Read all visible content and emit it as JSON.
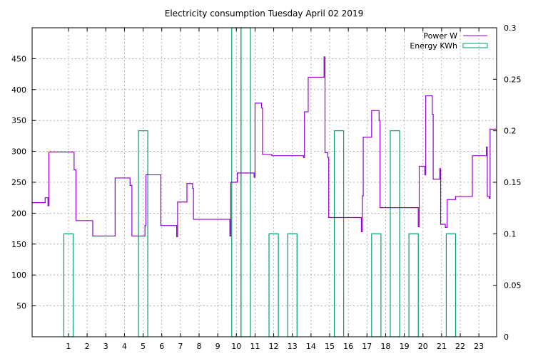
{
  "chart_data": {
    "type": "line",
    "title": "Electricity consumption Tuesday April 02 2019",
    "xlabel": "",
    "ylabel": "",
    "y2label": "",
    "xlim": [
      -0.95,
      23.95
    ],
    "ylim": [
      0,
      500
    ],
    "y2lim": [
      0,
      0.3
    ],
    "grid": true,
    "legend_position": "top-right",
    "x_ticks": [
      1,
      2,
      3,
      4,
      5,
      6,
      7,
      8,
      9,
      10,
      11,
      12,
      13,
      14,
      15,
      16,
      17,
      18,
      19,
      20,
      21,
      22,
      23
    ],
    "y_ticks": [
      50,
      100,
      150,
      200,
      250,
      300,
      350,
      400,
      450
    ],
    "y2_ticks": [
      0,
      0.05,
      0.1,
      0.15,
      0.2,
      0.25,
      0.3
    ],
    "y2_tick_labels": [
      "0",
      "0.05",
      "0.1",
      "0.15",
      "0.2",
      "0.25",
      "0.3"
    ],
    "series": [
      {
        "name": "Power W",
        "color": "#9400d3",
        "axis": "y",
        "style": "steps",
        "points": [
          [
            -0.95,
            217
          ],
          [
            -0.25,
            217
          ],
          [
            -0.25,
            225
          ],
          [
            -0.1,
            225
          ],
          [
            -0.1,
            212
          ],
          [
            -0.05,
            212
          ],
          [
            -0.05,
            299
          ],
          [
            1.3,
            299
          ],
          [
            1.3,
            270
          ],
          [
            1.4,
            270
          ],
          [
            1.4,
            188
          ],
          [
            1.95,
            188
          ],
          [
            1.95,
            188
          ],
          [
            2.3,
            188
          ],
          [
            2.3,
            163
          ],
          [
            3.5,
            163
          ],
          [
            3.5,
            257
          ],
          [
            4.3,
            257
          ],
          [
            4.3,
            245
          ],
          [
            4.4,
            245
          ],
          [
            4.4,
            163
          ],
          [
            5.1,
            163
          ],
          [
            5.1,
            180
          ],
          [
            5.15,
            180
          ],
          [
            5.15,
            262
          ],
          [
            5.95,
            262
          ],
          [
            5.95,
            180
          ],
          [
            6.8,
            180
          ],
          [
            6.8,
            162
          ],
          [
            6.85,
            162
          ],
          [
            6.85,
            218
          ],
          [
            7.35,
            218
          ],
          [
            7.35,
            248
          ],
          [
            7.65,
            248
          ],
          [
            7.65,
            240
          ],
          [
            7.7,
            240
          ],
          [
            7.7,
            190
          ],
          [
            9.65,
            190
          ],
          [
            9.65,
            163
          ],
          [
            9.7,
            163
          ],
          [
            9.7,
            250
          ],
          [
            10.05,
            250
          ],
          [
            10.05,
            265
          ],
          [
            10.95,
            265
          ],
          [
            10.95,
            258
          ],
          [
            11.0,
            258
          ],
          [
            11.0,
            378
          ],
          [
            11.35,
            378
          ],
          [
            11.35,
            370
          ],
          [
            11.4,
            370
          ],
          [
            11.4,
            295
          ],
          [
            11.9,
            295
          ],
          [
            11.9,
            293
          ],
          [
            13.6,
            293
          ],
          [
            13.6,
            290
          ],
          [
            13.65,
            290
          ],
          [
            13.65,
            364
          ],
          [
            13.85,
            364
          ],
          [
            13.85,
            420
          ],
          [
            14.7,
            420
          ],
          [
            14.7,
            453
          ],
          [
            14.75,
            453
          ],
          [
            14.75,
            298
          ],
          [
            14.9,
            298
          ],
          [
            14.9,
            290
          ],
          [
            14.95,
            290
          ],
          [
            14.95,
            193
          ],
          [
            16.7,
            193
          ],
          [
            16.7,
            170
          ],
          [
            16.75,
            170
          ],
          [
            16.75,
            228
          ],
          [
            16.8,
            228
          ],
          [
            16.8,
            323
          ],
          [
            17.25,
            323
          ],
          [
            17.25,
            366
          ],
          [
            17.65,
            366
          ],
          [
            17.65,
            350
          ],
          [
            17.7,
            350
          ],
          [
            17.7,
            209
          ],
          [
            19.75,
            209
          ],
          [
            19.75,
            178
          ],
          [
            19.8,
            178
          ],
          [
            19.8,
            276
          ],
          [
            20.1,
            276
          ],
          [
            20.1,
            262
          ],
          [
            20.15,
            262
          ],
          [
            20.15,
            390
          ],
          [
            20.5,
            390
          ],
          [
            20.5,
            360
          ],
          [
            20.55,
            360
          ],
          [
            20.55,
            255
          ],
          [
            20.9,
            255
          ],
          [
            20.9,
            272
          ],
          [
            20.95,
            272
          ],
          [
            20.95,
            182
          ],
          [
            21.2,
            182
          ],
          [
            21.2,
            177
          ],
          [
            21.3,
            177
          ],
          [
            21.3,
            222
          ],
          [
            21.75,
            222
          ],
          [
            21.75,
            227
          ],
          [
            22.65,
            227
          ],
          [
            22.65,
            293
          ],
          [
            23.4,
            293
          ],
          [
            23.4,
            307
          ],
          [
            23.45,
            307
          ],
          [
            23.45,
            227
          ],
          [
            23.55,
            227
          ],
          [
            23.55,
            224
          ],
          [
            23.6,
            224
          ],
          [
            23.6,
            336
          ],
          [
            23.95,
            336
          ]
        ]
      },
      {
        "name": "Energy KWh",
        "color": "#009e73",
        "axis": "y2",
        "style": "boxes",
        "bars": [
          {
            "x": 1.0,
            "value": 0.1
          },
          {
            "x": 5.0,
            "value": 0.2
          },
          {
            "x": 10.0,
            "value": 0.3
          },
          {
            "x": 10.5,
            "value": 0.3
          },
          {
            "x": 12.0,
            "value": 0.1
          },
          {
            "x": 13.0,
            "value": 0.1
          },
          {
            "x": 15.5,
            "value": 0.2
          },
          {
            "x": 17.5,
            "value": 0.1
          },
          {
            "x": 18.5,
            "value": 0.2
          },
          {
            "x": 19.5,
            "value": 0.1
          },
          {
            "x": 21.5,
            "value": 0.1
          }
        ],
        "bar_width": 0.5
      }
    ]
  }
}
